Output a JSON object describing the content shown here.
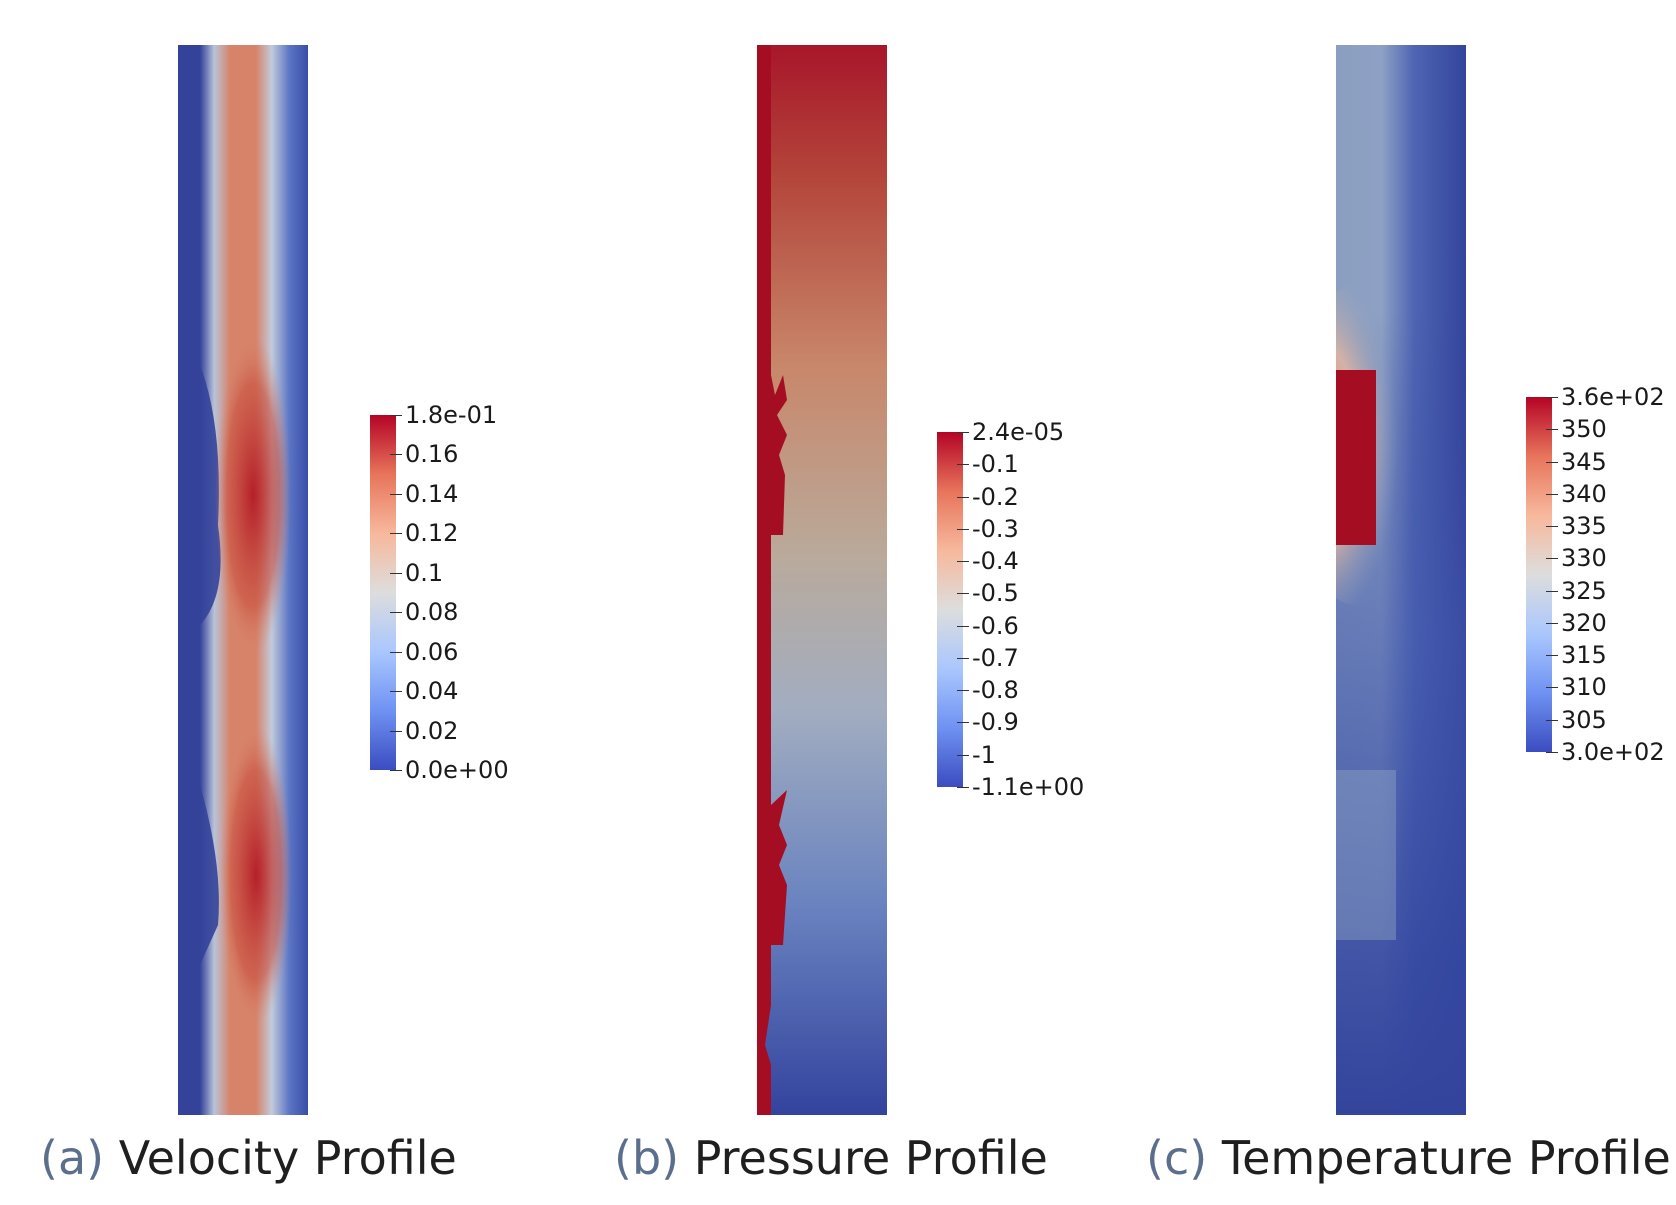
{
  "panels": [
    {
      "letter": "(a)",
      "title": "Velocity Profile",
      "colorbar_labels": [
        "1.8e-01",
        "0.16",
        "0.14",
        "0.12",
        "0.1",
        "0.08",
        "0.06",
        "0.04",
        "0.02",
        "0.0e+00"
      ]
    },
    {
      "letter": "(b)",
      "title": "Pressure Profile",
      "colorbar_labels": [
        "2.4e-05",
        "-0.1",
        "-0.2",
        "-0.3",
        "-0.4",
        "-0.5",
        "-0.6",
        "-0.7",
        "-0.8",
        "-0.9",
        "-1",
        "-1.1e+00"
      ]
    },
    {
      "letter": "(c)",
      "title": "Temperature Profile",
      "colorbar_labels": [
        "3.6e+02",
        "350",
        "345",
        "340",
        "335",
        "330",
        "325",
        "320",
        "315",
        "310",
        "305",
        "3.0e+02"
      ]
    }
  ],
  "colormap": {
    "name": "cool-to-warm",
    "stops": [
      "#3b4cc0",
      "#6f92f3",
      "#aac7fd",
      "#dddddd",
      "#f7b89c",
      "#e7745b",
      "#b40426"
    ]
  },
  "colors": {
    "low": "#34439a",
    "high": "#a50d22",
    "velocity_mid": "#d7836a",
    "temperature_plume": "#8a9fc0",
    "caption_letter": "#5b6f8d"
  }
}
